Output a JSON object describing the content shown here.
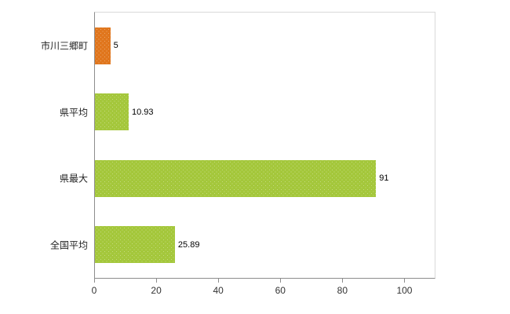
{
  "chart_data": {
    "type": "bar",
    "orientation": "horizontal",
    "title": "",
    "xlabel": "",
    "ylabel": "",
    "categories": [
      "市川三郷町",
      "県平均",
      "県最大",
      "全国平均"
    ],
    "values": [
      5,
      10.93,
      91,
      25.89
    ],
    "value_labels": [
      "5",
      "10.93",
      "91",
      "25.89"
    ],
    "series": [
      {
        "name": "値",
        "values": [
          5,
          10.93,
          91,
          25.89
        ]
      }
    ],
    "bar_colors": [
      "#e0761d",
      "#a4c73b",
      "#a4c73b",
      "#a4c73b"
    ],
    "xlim": [
      0,
      110
    ],
    "x_ticks": [
      "0",
      "20",
      "40",
      "60",
      "80",
      "100"
    ],
    "x_tick_values": [
      0,
      20,
      40,
      60,
      80,
      100
    ],
    "grid": false,
    "legend": "none"
  },
  "colors": {
    "axis": "#8c8c8c",
    "plot_border": "#d9d9d9",
    "background": "#ffffff",
    "highlight_bar": "#e0761d",
    "default_bar": "#a4c73b"
  }
}
